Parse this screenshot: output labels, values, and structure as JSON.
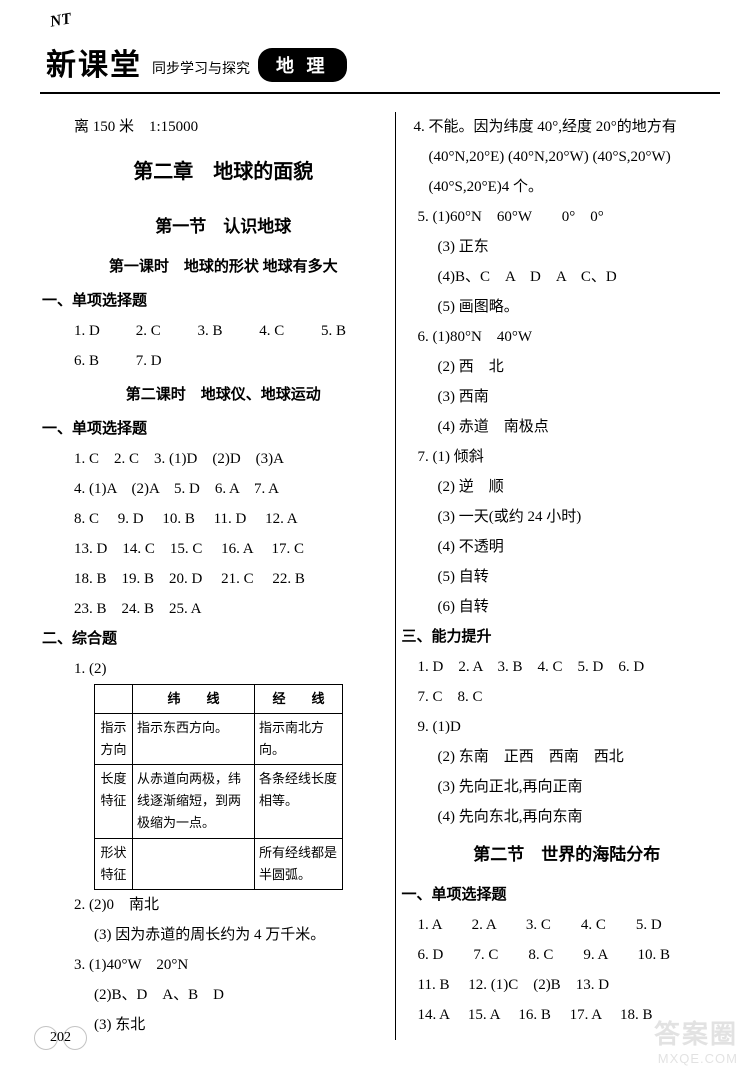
{
  "header": {
    "nt": "NT",
    "brand": "新课堂",
    "subtitle": "同步学习与探究",
    "subject": "地 理"
  },
  "left": {
    "pre": "离 150 米　1:15000",
    "chapter": "第二章　地球的面貌",
    "section1": "第一节　认识地球",
    "lesson1": "第一课时　地球的形状 地球有多大",
    "mcq_heading": "一、单项选择题",
    "l1_row1": [
      "1. D",
      "2. C",
      "3. B",
      "4. C",
      "5. B"
    ],
    "l1_row2": [
      "6. B",
      "7. D"
    ],
    "lesson2": "第二课时　地球仪、地球运动",
    "l2_rows": [
      "1. C　2. C　3. (1)D　(2)D　(3)A",
      "4. (1)A　(2)A　5. D　6. A　7. A",
      "8. C　 9. D　 10. B　 11. D　 12. A",
      "13. D　14. C　15. C　 16. A　 17. C",
      "18. B　19. B　20. D　 21. C　 22. B",
      "23. B　24. B　25. A"
    ],
    "comp_heading": "二、综合题",
    "q1_label": "1. (2)",
    "table": {
      "head": [
        "",
        "纬　　线",
        "经　　线"
      ],
      "rows": [
        [
          "指示方向",
          "指示东西方向。",
          "指示南北方向。"
        ],
        [
          "长度特征",
          "从赤道向两极，纬线逐渐缩短，到两极缩为一点。",
          "各条经线长度相等。"
        ],
        [
          "形状特征",
          "",
          "所有经线都是半圆弧。"
        ]
      ]
    },
    "q2a": "2. (2)0　南北",
    "q2b": "(3) 因为赤道的周长约为 4 万千米。",
    "q3a": "3. (1)40°W　20°N",
    "q3b": "(2)B、D　A、B　D",
    "q3c": "(3) 东北"
  },
  "right": {
    "q4": "4. 不能。因为纬度 40°,经度 20°的地方有(40°N,20°E) (40°N,20°W) (40°S,20°W)(40°S,20°E)4 个。",
    "q5": [
      "5. (1)60°N　60°W　　0°　0°",
      "(3) 正东",
      "(4)B、C　A　D　A　C、D",
      "(5) 画图略。"
    ],
    "q6": [
      "6. (1)80°N　40°W",
      "(2) 西　北",
      "(3) 西南",
      "(4) 赤道　南极点"
    ],
    "q7": [
      "7. (1) 倾斜",
      "(2) 逆　顺",
      "(3) 一天(或约 24 小时)",
      "(4) 不透明",
      "(5) 自转",
      "(6) 自转"
    ],
    "ability_heading": "三、能力提升",
    "ab_row1": "1. D　2. A　3. B　4. C　5. D　6. D",
    "ab_row2": "7. C　8. C",
    "q9": [
      "9. (1)D",
      "(2) 东南　正西　西南　西北",
      "(3) 先向正北,再向正南",
      "(4) 先向东北,再向东南"
    ],
    "section2": "第二节　世界的海陆分布",
    "s2_rows": [
      "1. A　　2. A　　3. C　　4. C　　5. D",
      "6. D　　7. C　　8. C　　9. A　　10. B",
      "11. B　 12. (1)C　(2)B　13. D",
      "14. A　 15. A　 16. B　 17. A　 18. B"
    ]
  },
  "page_num": "202",
  "watermark": {
    "line1": "答案圈",
    "line2": "MXQE.COM"
  }
}
